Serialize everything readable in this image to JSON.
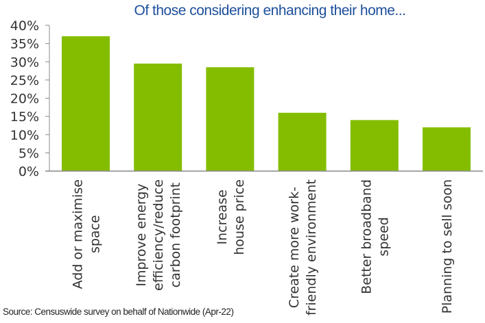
{
  "chart_data": {
    "type": "bar",
    "title": "Of those considering enhancing their home...",
    "xlabel": "",
    "ylabel": "",
    "categories": [
      [
        "Add or maximise",
        "space"
      ],
      [
        "Improve energy",
        "efficiency/reduce",
        "carbon footprint"
      ],
      [
        "Increase",
        "house price"
      ],
      [
        "Create more work-",
        "friendly environment"
      ],
      [
        "Better broadband",
        "speed"
      ],
      [
        "Planning to sell soon"
      ]
    ],
    "values": [
      37,
      29.5,
      28.5,
      16,
      14,
      12
    ],
    "value_unit": "%",
    "ylim": [
      0,
      40
    ],
    "yticks": [
      "0%",
      "5%",
      "10%",
      "15%",
      "20%",
      "25%",
      "30%",
      "35%",
      "40%"
    ],
    "ytick_values": [
      0,
      5,
      10,
      15,
      20,
      25,
      30,
      35,
      40
    ],
    "grid": false,
    "legend": "none",
    "colors": {
      "bar": "#84bd00",
      "title": "#1c4f9c",
      "axis": "#888888",
      "text": "#333333"
    }
  },
  "source": "Source: Censuswide survey on behalf of Nationwide (Apr-22)"
}
